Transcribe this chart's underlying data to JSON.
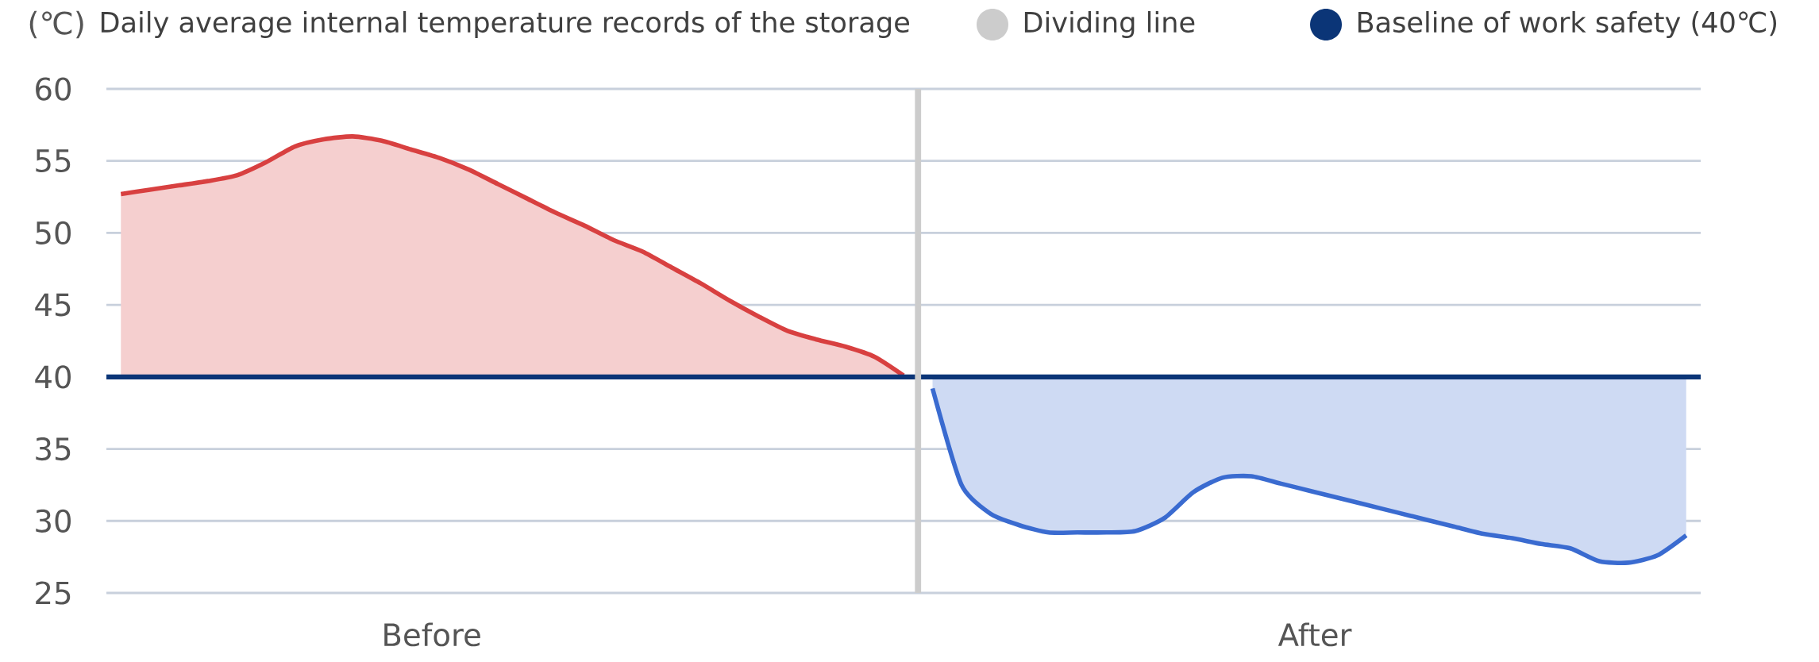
{
  "chart_data": {
    "type": "line",
    "title": "Daily average internal temperature records of the storage",
    "ylabel": "(℃)",
    "categories": [
      null,
      null,
      null,
      null,
      null,
      null,
      null,
      null,
      null,
      null,
      null,
      null,
      null,
      null,
      null,
      null,
      null,
      null,
      null,
      null,
      null,
      null,
      null,
      null,
      null,
      null,
      null,
      null,
      null,
      null,
      null,
      null,
      null,
      null,
      null,
      null,
      null,
      null,
      null,
      null,
      null,
      null,
      null,
      null,
      null,
      null,
      null,
      null,
      null,
      null,
      null,
      null,
      null,
      null,
      null
    ],
    "tick_labels": "y",
    "annotations": [
      "Before",
      "After",
      "Dividing line"
    ],
    "ylim": [
      25,
      60
    ],
    "yticks": [
      25,
      30,
      35,
      40,
      45,
      50,
      55,
      60
    ],
    "grid": "y",
    "legend": "top right",
    "series": [
      {
        "color": "#d84040",
        "values": [
          52.7,
          53.0,
          53.3,
          53.6,
          54.0,
          54.9,
          56.0,
          56.5,
          56.7,
          56.4,
          55.8,
          55.2,
          54.4,
          53.4,
          52.4,
          51.4,
          50.5,
          49.5,
          48.7,
          47.6,
          46.5,
          45.3,
          44.2,
          43.2,
          42.6,
          42.1,
          41.4,
          40.1,
          null,
          null,
          null,
          null,
          null,
          null,
          null,
          null,
          null,
          null,
          null,
          null,
          null,
          null,
          null,
          null,
          null,
          null,
          null,
          null,
          null,
          null,
          null,
          null,
          null,
          null,
          null
        ],
        "lower": [
          40,
          40,
          40,
          40,
          40,
          40,
          40,
          40,
          40,
          40,
          40,
          40,
          40,
          40,
          40,
          40,
          40,
          40,
          40,
          40,
          40,
          40,
          40,
          40,
          40,
          40,
          40,
          40,
          null,
          null,
          null,
          null,
          null,
          null,
          null,
          null,
          null,
          null,
          null,
          null,
          null,
          null,
          null,
          null,
          null,
          null,
          null,
          null,
          null,
          null,
          null,
          null,
          null,
          null,
          null
        ],
        "upper": [
          52.7,
          53.0,
          53.3,
          53.6,
          54.0,
          54.9,
          56.0,
          56.5,
          56.7,
          56.4,
          55.8,
          55.2,
          54.4,
          53.4,
          52.4,
          51.4,
          50.5,
          49.5,
          48.7,
          47.6,
          46.5,
          45.3,
          44.2,
          43.2,
          42.6,
          42.1,
          41.4,
          40.1,
          null,
          null,
          null,
          null,
          null,
          null,
          null,
          null,
          null,
          null,
          null,
          null,
          null,
          null,
          null,
          null,
          null,
          null,
          null,
          null,
          null,
          null,
          null,
          null,
          null,
          null,
          null
        ]
      },
      {
        "color": "#3a6bd0",
        "values": [
          null,
          null,
          null,
          null,
          null,
          null,
          null,
          null,
          null,
          null,
          null,
          null,
          null,
          null,
          null,
          null,
          null,
          null,
          null,
          null,
          null,
          null,
          null,
          null,
          null,
          null,
          null,
          null,
          39.2,
          32.5,
          30.5,
          29.7,
          29.2,
          29.2,
          29.2,
          29.3,
          30.2,
          32.0,
          33.0,
          33.1,
          32.6,
          32.1,
          31.6,
          31.1,
          30.6,
          30.1,
          29.6,
          29.1,
          28.8,
          28.4,
          28.1,
          27.2,
          27.1,
          27.6,
          29.0
        ],
        "lower": [
          null,
          null,
          null,
          null,
          null,
          null,
          null,
          null,
          null,
          null,
          null,
          null,
          null,
          null,
          null,
          null,
          null,
          null,
          null,
          null,
          null,
          null,
          null,
          null,
          null,
          null,
          null,
          null,
          39.2,
          32.5,
          30.5,
          29.7,
          29.2,
          29.2,
          29.2,
          29.3,
          30.2,
          32.0,
          33.0,
          33.1,
          32.6,
          32.1,
          31.6,
          31.1,
          30.6,
          30.1,
          29.6,
          29.1,
          28.8,
          28.4,
          28.1,
          27.2,
          27.1,
          27.6,
          29.0
        ],
        "upper": [
          null,
          null,
          null,
          null,
          null,
          null,
          null,
          null,
          null,
          null,
          null,
          null,
          null,
          null,
          null,
          null,
          null,
          null,
          null,
          null,
          null,
          null,
          null,
          null,
          null,
          null,
          null,
          null,
          40,
          40,
          40,
          40,
          40,
          40,
          40,
          40,
          40,
          40,
          40,
          40,
          40,
          40,
          40,
          40,
          40,
          40,
          40,
          40,
          40,
          40,
          40,
          40,
          40,
          40,
          40
        ]
      }
    ],
    "ref_lines": [
      {
        "axis": "y",
        "value": 40,
        "label": "Baseline of work safety (40℃)",
        "color": "#0b3577"
      }
    ]
  }
}
